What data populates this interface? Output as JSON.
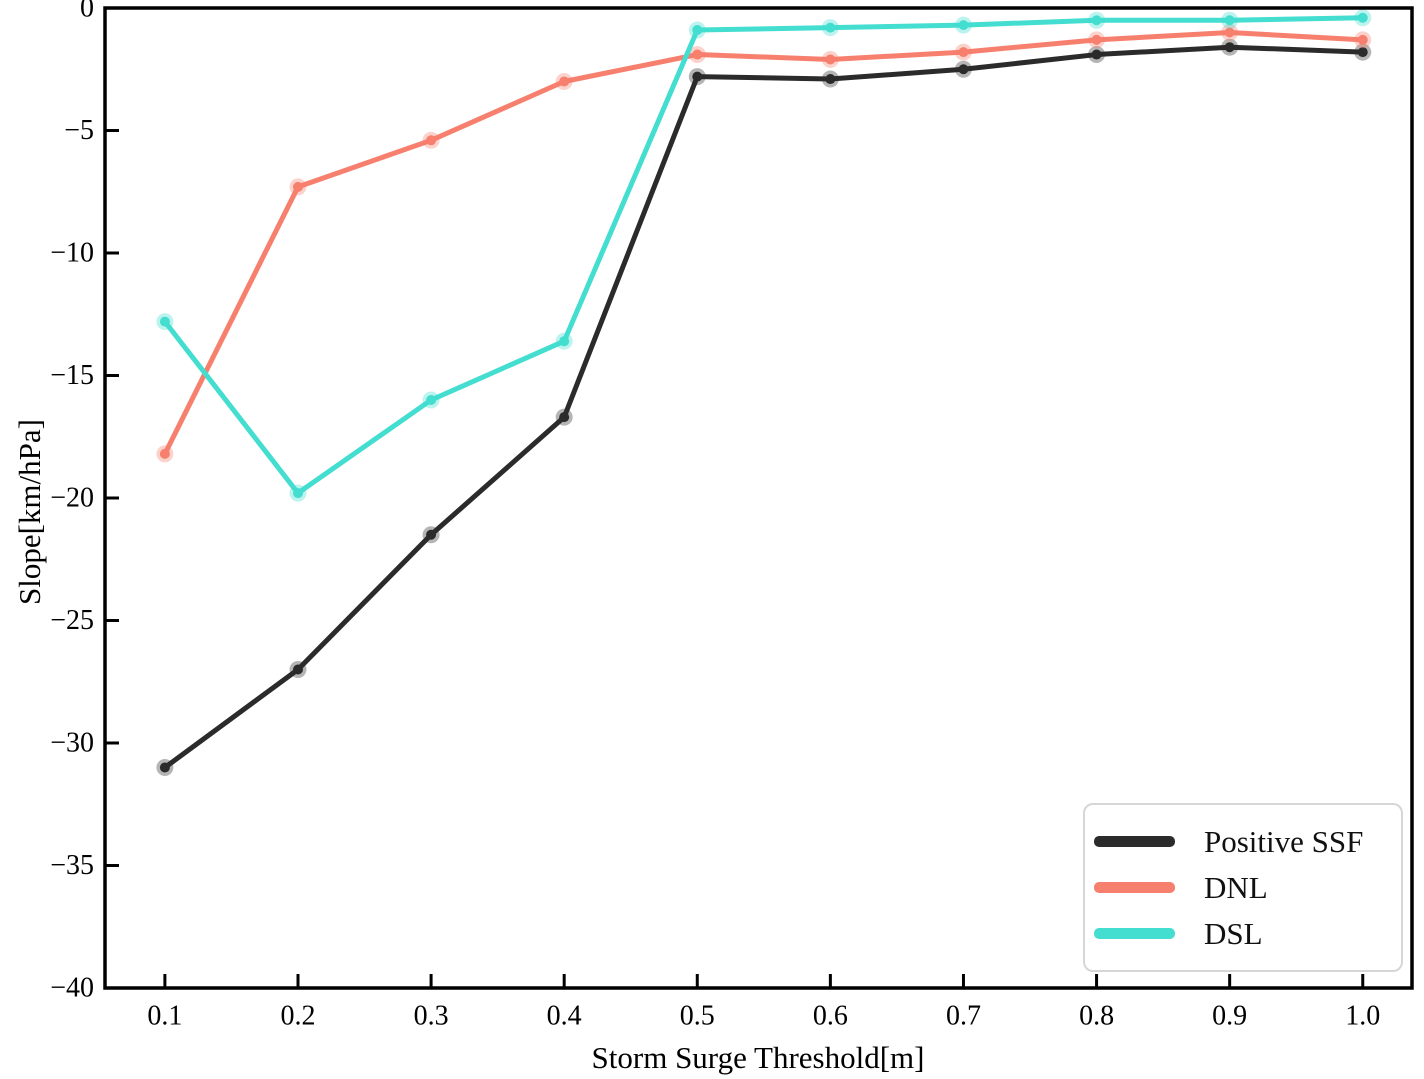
{
  "figure": {
    "background": "#ffffff",
    "spine_color": "#000000",
    "tick_color": "#000000"
  },
  "chart_data": {
    "type": "line",
    "title": "",
    "xlabel": "Storm Surge Threshold[m]",
    "ylabel": "Slope[km/hPa]",
    "x": [
      0.1,
      0.2,
      0.3,
      0.4,
      0.5,
      0.6,
      0.7,
      0.8,
      0.9,
      1.0
    ],
    "series": [
      {
        "name": "Positive SSF",
        "color": "#2b2b2b",
        "values": [
          -31.0,
          -27.0,
          -21.5,
          -16.7,
          -2.8,
          -2.9,
          -2.5,
          -1.9,
          -1.6,
          -1.8
        ]
      },
      {
        "name": "DNL",
        "color": "#f77f6e",
        "values": [
          -18.2,
          -7.3,
          -5.4,
          -3.0,
          -1.9,
          -2.1,
          -1.8,
          -1.3,
          -1.0,
          -1.3
        ]
      },
      {
        "name": "DSL",
        "color": "#43ded0",
        "values": [
          -12.8,
          -19.8,
          -16.0,
          -13.6,
          -0.9,
          -0.8,
          -0.7,
          -0.5,
          -0.5,
          -0.4
        ]
      }
    ],
    "xlim": [
      0.055,
      1.037
    ],
    "ylim": [
      -40,
      0
    ],
    "xticks": {
      "values": [
        0.1,
        0.2,
        0.3,
        0.4,
        0.5,
        0.6,
        0.7,
        0.8,
        0.9,
        1.0
      ],
      "labels": [
        "0.1",
        "0.2",
        "0.3",
        "0.4",
        "0.5",
        "0.6",
        "0.7",
        "0.8",
        "0.9",
        "1.0"
      ]
    },
    "yticks": {
      "values": [
        0,
        -5,
        -10,
        -15,
        -20,
        -25,
        -30,
        -35,
        -40
      ],
      "labels": [
        "0",
        "−5",
        "−10",
        "−15",
        "−20",
        "−25",
        "−30",
        "−35",
        "−40"
      ]
    },
    "grid": false,
    "legend_position": "lower right",
    "marker": "circle",
    "line_width": 5
  }
}
